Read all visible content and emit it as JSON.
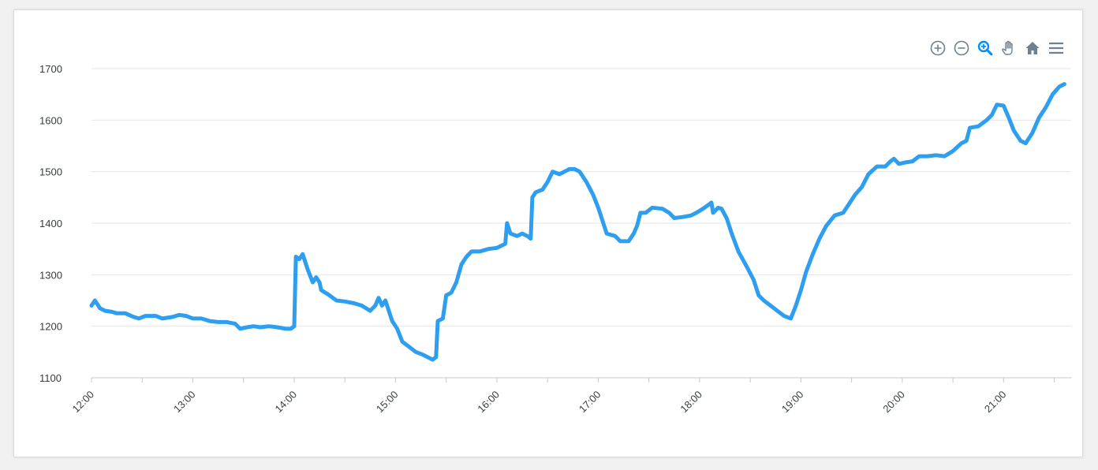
{
  "toolbar": {
    "icons": [
      "zoom-in-icon",
      "zoom-out-icon",
      "selection-zoom-icon",
      "pan-hand-icon",
      "home-reset-icon",
      "menu-icon"
    ],
    "active_color": "#008ffb",
    "icon_color": "#6e8192"
  },
  "chart_data": {
    "type": "line",
    "title": "",
    "xlabel": "",
    "ylabel": "",
    "ylim": [
      1100,
      1700
    ],
    "xlim": [
      "12:00",
      "21:40"
    ],
    "grid": true,
    "legend": "none",
    "y_ticks": [
      "1700",
      "1600",
      "1500",
      "1400",
      "1300",
      "1200",
      "1100"
    ],
    "x_ticks": [
      "12:00",
      "13:00",
      "14:00",
      "15:00",
      "16:00",
      "17:00",
      "18:00",
      "19:00",
      "20:00",
      "21:00"
    ],
    "line_color": "#2e9ef0",
    "series": [
      {
        "points": [
          [
            "12:00",
            1240
          ],
          [
            "12:02",
            1250
          ],
          [
            "12:05",
            1235
          ],
          [
            "12:08",
            1230
          ],
          [
            "12:12",
            1228
          ],
          [
            "12:15",
            1225
          ],
          [
            "12:20",
            1225
          ],
          [
            "12:25",
            1218
          ],
          [
            "12:28",
            1215
          ],
          [
            "12:32",
            1220
          ],
          [
            "12:38",
            1220
          ],
          [
            "12:42",
            1215
          ],
          [
            "12:48",
            1218
          ],
          [
            "12:52",
            1222
          ],
          [
            "12:56",
            1220
          ],
          [
            "13:00",
            1215
          ],
          [
            "13:05",
            1215
          ],
          [
            "13:10",
            1210
          ],
          [
            "13:15",
            1208
          ],
          [
            "13:20",
            1208
          ],
          [
            "13:25",
            1205
          ],
          [
            "13:28",
            1195
          ],
          [
            "13:32",
            1198
          ],
          [
            "13:36",
            1200
          ],
          [
            "13:40",
            1198
          ],
          [
            "13:45",
            1200
          ],
          [
            "13:50",
            1198
          ],
          [
            "13:55",
            1195
          ],
          [
            "13:58",
            1195
          ],
          [
            "14:00",
            1200
          ],
          [
            "14:01",
            1335
          ],
          [
            "14:03",
            1330
          ],
          [
            "14:05",
            1340
          ],
          [
            "14:08",
            1310
          ],
          [
            "14:11",
            1285
          ],
          [
            "14:13",
            1295
          ],
          [
            "14:15",
            1285
          ],
          [
            "14:16",
            1270
          ],
          [
            "14:20",
            1262
          ],
          [
            "14:25",
            1250
          ],
          [
            "14:30",
            1248
          ],
          [
            "14:35",
            1245
          ],
          [
            "14:40",
            1240
          ],
          [
            "14:45",
            1230
          ],
          [
            "14:48",
            1240
          ],
          [
            "14:50",
            1255
          ],
          [
            "14:52",
            1240
          ],
          [
            "14:54",
            1250
          ],
          [
            "14:56",
            1230
          ],
          [
            "14:58",
            1210
          ],
          [
            "15:01",
            1195
          ],
          [
            "15:04",
            1170
          ],
          [
            "15:08",
            1160
          ],
          [
            "15:12",
            1150
          ],
          [
            "15:16",
            1145
          ],
          [
            "15:19",
            1140
          ],
          [
            "15:22",
            1135
          ],
          [
            "15:24",
            1140
          ],
          [
            "15:25",
            1210
          ],
          [
            "15:28",
            1215
          ],
          [
            "15:30",
            1260
          ],
          [
            "15:33",
            1265
          ],
          [
            "15:36",
            1285
          ],
          [
            "15:39",
            1320
          ],
          [
            "15:42",
            1335
          ],
          [
            "15:45",
            1345
          ],
          [
            "15:50",
            1345
          ],
          [
            "15:55",
            1350
          ],
          [
            "16:00",
            1352
          ],
          [
            "16:05",
            1360
          ],
          [
            "16:06",
            1400
          ],
          [
            "16:08",
            1380
          ],
          [
            "16:12",
            1375
          ],
          [
            "16:15",
            1380
          ],
          [
            "16:18",
            1375
          ],
          [
            "16:20",
            1370
          ],
          [
            "16:21",
            1450
          ],
          [
            "16:23",
            1460
          ],
          [
            "16:27",
            1465
          ],
          [
            "16:30",
            1480
          ],
          [
            "16:33",
            1500
          ],
          [
            "16:37",
            1495
          ],
          [
            "16:40",
            1500
          ],
          [
            "16:43",
            1505
          ],
          [
            "16:46",
            1505
          ],
          [
            "16:49",
            1500
          ],
          [
            "16:53",
            1480
          ],
          [
            "16:57",
            1455
          ],
          [
            "17:00",
            1430
          ],
          [
            "17:02",
            1410
          ],
          [
            "17:05",
            1380
          ],
          [
            "17:10",
            1375
          ],
          [
            "17:13",
            1365
          ],
          [
            "17:18",
            1365
          ],
          [
            "17:21",
            1380
          ],
          [
            "17:23",
            1395
          ],
          [
            "17:25",
            1420
          ],
          [
            "17:28",
            1420
          ],
          [
            "17:32",
            1430
          ],
          [
            "17:38",
            1428
          ],
          [
            "17:42",
            1420
          ],
          [
            "17:45",
            1410
          ],
          [
            "17:50",
            1412
          ],
          [
            "17:55",
            1415
          ],
          [
            "17:58",
            1420
          ],
          [
            "18:02",
            1428
          ],
          [
            "18:05",
            1435
          ],
          [
            "18:07",
            1440
          ],
          [
            "18:08",
            1420
          ],
          [
            "18:11",
            1430
          ],
          [
            "18:13",
            1428
          ],
          [
            "18:16",
            1410
          ],
          [
            "18:19",
            1380
          ],
          [
            "18:23",
            1345
          ],
          [
            "18:28",
            1315
          ],
          [
            "18:32",
            1290
          ],
          [
            "18:35",
            1260
          ],
          [
            "18:38",
            1250
          ],
          [
            "18:42",
            1240
          ],
          [
            "18:46",
            1230
          ],
          [
            "18:50",
            1220
          ],
          [
            "18:54",
            1215
          ],
          [
            "18:57",
            1240
          ],
          [
            "19:00",
            1270
          ],
          [
            "19:03",
            1305
          ],
          [
            "19:07",
            1340
          ],
          [
            "19:11",
            1370
          ],
          [
            "19:15",
            1395
          ],
          [
            "19:20",
            1415
          ],
          [
            "19:25",
            1420
          ],
          [
            "19:29",
            1440
          ],
          [
            "19:32",
            1455
          ],
          [
            "19:36",
            1470
          ],
          [
            "19:40",
            1495
          ],
          [
            "19:45",
            1510
          ],
          [
            "19:50",
            1510
          ],
          [
            "19:53",
            1520
          ],
          [
            "19:55",
            1525
          ],
          [
            "19:58",
            1515
          ],
          [
            "20:02",
            1518
          ],
          [
            "20:06",
            1520
          ],
          [
            "20:10",
            1530
          ],
          [
            "20:15",
            1530
          ],
          [
            "20:20",
            1532
          ],
          [
            "20:25",
            1530
          ],
          [
            "20:30",
            1540
          ],
          [
            "20:35",
            1555
          ],
          [
            "20:38",
            1560
          ],
          [
            "20:40",
            1585
          ],
          [
            "20:45",
            1588
          ],
          [
            "20:50",
            1600
          ],
          [
            "20:53",
            1610
          ],
          [
            "20:56",
            1630
          ],
          [
            "21:00",
            1628
          ],
          [
            "21:03",
            1605
          ],
          [
            "21:06",
            1580
          ],
          [
            "21:10",
            1560
          ],
          [
            "21:13",
            1555
          ],
          [
            "21:17",
            1575
          ],
          [
            "21:21",
            1605
          ],
          [
            "21:25",
            1625
          ],
          [
            "21:29",
            1650
          ],
          [
            "21:33",
            1665
          ],
          [
            "21:36",
            1670
          ]
        ]
      }
    ]
  }
}
